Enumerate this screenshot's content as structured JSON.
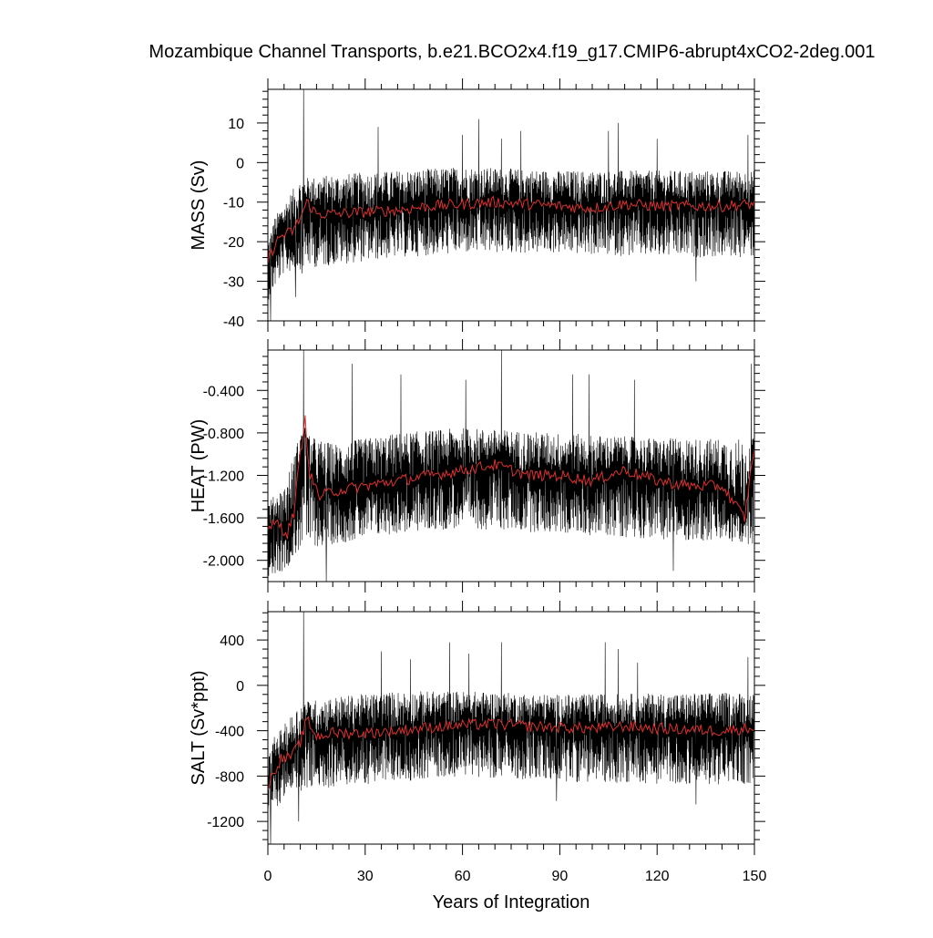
{
  "chart_data": {
    "type": "line",
    "title": "Mozambique Channel Transports, b.e21.BCO2x4.f19_g17.CMIP6-abrupt4xCO2-2deg.001",
    "xlabel": "Years of Integration",
    "xlim": [
      0,
      150
    ],
    "xticks": [
      0,
      30,
      60,
      90,
      120,
      150
    ],
    "xtick_labels": [
      "0",
      "30",
      "60",
      "90",
      "120",
      "150"
    ],
    "series_styles": {
      "monthly": "#000000",
      "annual_mean": "#e03030"
    },
    "panels": [
      {
        "ylabel": "MASS (Sv)",
        "ylim": [
          -40,
          18.5
        ],
        "yticks": [
          10,
          0,
          -10,
          -20,
          -30,
          -40
        ],
        "ytick_labels": [
          "10",
          "0",
          "-10",
          "-20",
          "-30",
          "-40"
        ],
        "annual_mean": [
          [
            0,
            -25
          ],
          [
            2,
            -21
          ],
          [
            4,
            -18.5
          ],
          [
            6,
            -18
          ],
          [
            8,
            -17
          ],
          [
            10,
            -14
          ],
          [
            12,
            -10
          ],
          [
            15,
            -13
          ],
          [
            20,
            -13
          ],
          [
            30,
            -12.5
          ],
          [
            40,
            -12
          ],
          [
            50,
            -11
          ],
          [
            60,
            -10.5
          ],
          [
            70,
            -10
          ],
          [
            80,
            -10.5
          ],
          [
            90,
            -11
          ],
          [
            100,
            -11.5
          ],
          [
            110,
            -10.5
          ],
          [
            120,
            -11
          ],
          [
            130,
            -11
          ],
          [
            140,
            -11
          ],
          [
            150,
            -10.5
          ]
        ],
        "monthly_envelope": [
          [
            0,
            -35,
            -20
          ],
          [
            2,
            -32,
            -14
          ],
          [
            5,
            -28,
            -10
          ],
          [
            10,
            -27,
            -4
          ],
          [
            20,
            -26,
            -3
          ],
          [
            40,
            -24,
            -2
          ],
          [
            60,
            -23,
            -1
          ],
          [
            90,
            -23,
            -2
          ],
          [
            120,
            -24,
            -2
          ],
          [
            150,
            -24,
            -2
          ]
        ],
        "spikes": [
          [
            11,
            18.5
          ],
          [
            10.5,
            -28
          ],
          [
            8.5,
            -34
          ],
          [
            0.8,
            -40
          ],
          [
            34,
            9
          ],
          [
            60,
            7
          ],
          [
            65,
            11
          ],
          [
            72,
            6
          ],
          [
            78,
            8
          ],
          [
            105,
            8
          ],
          [
            108,
            10
          ],
          [
            120,
            6
          ],
          [
            132,
            -30
          ],
          [
            148,
            7
          ]
        ]
      },
      {
        "ylabel": "HEAT (PW)",
        "ylim": [
          -2.2,
          -0.02
        ],
        "yticks": [
          -0.4,
          -0.8,
          -1.2,
          -1.6,
          -2.0
        ],
        "ytick_labels": [
          "-0.400",
          "-0.800",
          "-1.200",
          "-1.600",
          "-2.000"
        ],
        "annual_mean": [
          [
            0,
            -1.7
          ],
          [
            3,
            -1.65
          ],
          [
            6,
            -1.75
          ],
          [
            8,
            -1.55
          ],
          [
            10,
            -1.0
          ],
          [
            11.5,
            -0.68
          ],
          [
            13,
            -1.2
          ],
          [
            16,
            -1.4
          ],
          [
            20,
            -1.35
          ],
          [
            30,
            -1.3
          ],
          [
            40,
            -1.25
          ],
          [
            50,
            -1.2
          ],
          [
            60,
            -1.15
          ],
          [
            70,
            -1.1
          ],
          [
            80,
            -1.2
          ],
          [
            90,
            -1.2
          ],
          [
            100,
            -1.25
          ],
          [
            110,
            -1.15
          ],
          [
            120,
            -1.25
          ],
          [
            130,
            -1.3
          ],
          [
            140,
            -1.3
          ],
          [
            147,
            -1.6
          ],
          [
            150,
            -0.9
          ]
        ],
        "monthly_envelope": [
          [
            0,
            -2.15,
            -1.45
          ],
          [
            5,
            -2.1,
            -1.3
          ],
          [
            10,
            -1.9,
            -0.8
          ],
          [
            20,
            -1.85,
            -0.9
          ],
          [
            40,
            -1.75,
            -0.8
          ],
          [
            60,
            -1.7,
            -0.75
          ],
          [
            90,
            -1.75,
            -0.8
          ],
          [
            120,
            -1.8,
            -0.85
          ],
          [
            150,
            -1.85,
            -0.85
          ]
        ],
        "spikes": [
          [
            11,
            -0.02
          ],
          [
            18,
            -2.2
          ],
          [
            26,
            -0.15
          ],
          [
            41,
            -0.25
          ],
          [
            61,
            -0.3
          ],
          [
            72,
            -0.02
          ],
          [
            94,
            -0.25
          ],
          [
            99,
            -0.25
          ],
          [
            113,
            -0.3
          ],
          [
            125,
            -2.1
          ],
          [
            149,
            -0.15
          ]
        ]
      },
      {
        "ylabel": "SALT (Sv*ppt)",
        "ylim": [
          -1400,
          650
        ],
        "yticks": [
          400,
          0,
          -400,
          -800,
          -1200
        ],
        "ytick_labels": [
          "400",
          "0",
          "-400",
          "-800",
          "-1200"
        ],
        "annual_mean": [
          [
            0,
            -900
          ],
          [
            2,
            -750
          ],
          [
            4,
            -650
          ],
          [
            6,
            -640
          ],
          [
            8,
            -600
          ],
          [
            10,
            -500
          ],
          [
            12,
            -300
          ],
          [
            15,
            -450
          ],
          [
            20,
            -420
          ],
          [
            30,
            -420
          ],
          [
            40,
            -400
          ],
          [
            50,
            -370
          ],
          [
            60,
            -350
          ],
          [
            70,
            -340
          ],
          [
            80,
            -360
          ],
          [
            90,
            -370
          ],
          [
            100,
            -380
          ],
          [
            110,
            -360
          ],
          [
            120,
            -380
          ],
          [
            130,
            -390
          ],
          [
            140,
            -400
          ],
          [
            150,
            -370
          ]
        ],
        "monthly_envelope": [
          [
            0,
            -1200,
            -650
          ],
          [
            2,
            -1100,
            -450
          ],
          [
            5,
            -1000,
            -350
          ],
          [
            10,
            -950,
            -150
          ],
          [
            20,
            -900,
            -100
          ],
          [
            40,
            -850,
            -50
          ],
          [
            60,
            -800,
            -50
          ],
          [
            90,
            -850,
            -80
          ],
          [
            120,
            -870,
            -70
          ],
          [
            150,
            -880,
            -60
          ]
        ],
        "spikes": [
          [
            11,
            650
          ],
          [
            0.8,
            -1400
          ],
          [
            9.5,
            -1200
          ],
          [
            35,
            300
          ],
          [
            44,
            230
          ],
          [
            56,
            380
          ],
          [
            62,
            280
          ],
          [
            72,
            380
          ],
          [
            89,
            -1020
          ],
          [
            104,
            380
          ],
          [
            108,
            320
          ],
          [
            114,
            200
          ],
          [
            132,
            -1050
          ],
          [
            148,
            250
          ]
        ]
      }
    ]
  }
}
